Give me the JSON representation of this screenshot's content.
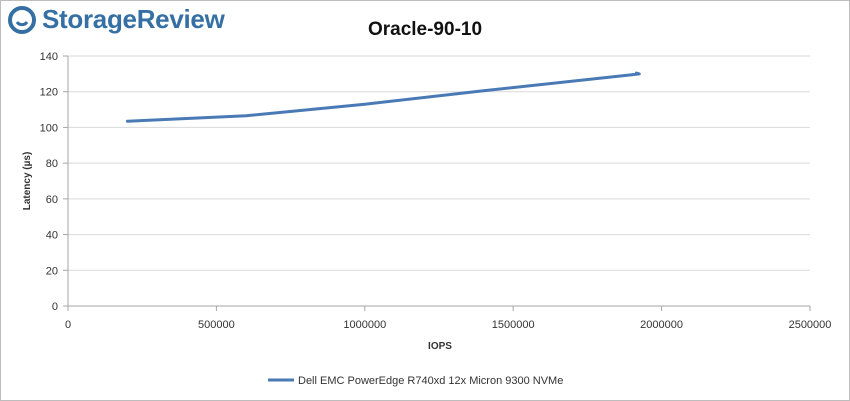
{
  "brand": {
    "name": "StorageReview",
    "accent": "#356fa3"
  },
  "chart_data": {
    "type": "line",
    "title": "Oracle-90-10",
    "xlabel": "IOPS",
    "ylabel": "Latency (µs)",
    "xlim": [
      0,
      2500000
    ],
    "ylim": [
      0,
      140
    ],
    "x_ticks": [
      0,
      500000,
      1000000,
      1500000,
      2000000,
      2500000
    ],
    "y_ticks": [
      0,
      20,
      40,
      60,
      80,
      100,
      120,
      140
    ],
    "grid": "horizontal",
    "legend": "bottom",
    "series": [
      {
        "name": "Dell EMC PowerEdge R740xd 12x Micron 9300 NVMe",
        "color": "#4a7ab5",
        "x": [
          200000,
          600000,
          1000000,
          1400000,
          1900000,
          1925000,
          1915000
        ],
        "y": [
          103.5,
          106.5,
          113,
          120.5,
          129.5,
          130,
          130.5
        ]
      }
    ]
  }
}
